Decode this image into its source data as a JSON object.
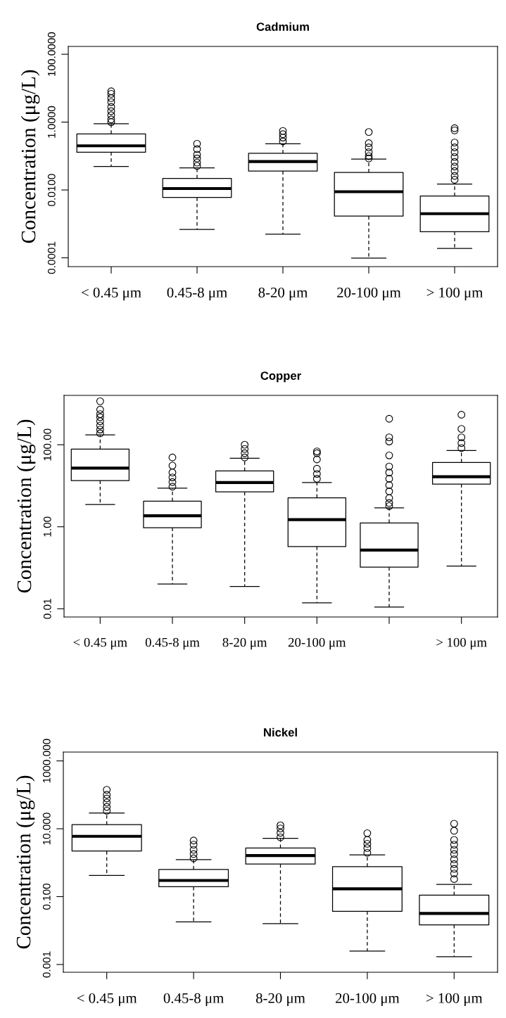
{
  "chart_data": [
    {
      "type": "box",
      "title": "Cadmium",
      "ylabel": "Concentration (μg/L)",
      "log": true,
      "ylim": [
        5.5e-05,
        170
      ],
      "yticks": [
        {
          "value": 100,
          "label": "100.0000"
        },
        {
          "value": 1,
          "label": "1.0000"
        },
        {
          "value": 0.01,
          "label": "0.0100"
        },
        {
          "value": 0.0001,
          "label": "0.0001"
        }
      ],
      "categories": [
        "< 0.45 μm",
        "0.45-8 μm",
        "8-20 μm",
        "20-100 μm",
        "> 100 μm"
      ],
      "boxes": [
        {
          "low": 0.049,
          "q1": 0.13,
          "median": 0.2,
          "q3": 0.45,
          "high": 0.9,
          "outliers": [
            8.1,
            6.8,
            5.1,
            3.9,
            2.8,
            2.1,
            1.6,
            1.2,
            1.0
          ]
        },
        {
          "low": 0.00069,
          "q1": 0.006,
          "median": 0.011,
          "q3": 0.022,
          "high": 0.045,
          "outliers": [
            0.23,
            0.16,
            0.11,
            0.085,
            0.064,
            0.051
          ]
        },
        {
          "low": 0.0005,
          "q1": 0.036,
          "median": 0.069,
          "q3": 0.12,
          "high": 0.23,
          "outliers": [
            0.55,
            0.44,
            0.35,
            0.27
          ]
        },
        {
          "low": 9.8e-05,
          "q1": 0.0017,
          "median": 0.0089,
          "q3": 0.033,
          "high": 0.081,
          "outliers": [
            0.51,
            0.24,
            0.18,
            0.13,
            0.1,
            0.085
          ]
        },
        {
          "low": 0.00019,
          "q1": 0.00059,
          "median": 0.002,
          "q3": 0.0066,
          "high": 0.015,
          "outliers": [
            0.66,
            0.57,
            0.25,
            0.18,
            0.13,
            0.094,
            0.067,
            0.049,
            0.036,
            0.026,
            0.02
          ]
        }
      ]
    },
    {
      "type": "box",
      "title": "Copper",
      "ylabel": "Concentration (μg/L)",
      "log": true,
      "ylim": [
        0.0063,
        1600
      ],
      "yticks": [
        {
          "value": 100,
          "label": "100.00"
        },
        {
          "value": 1,
          "label": "1.00"
        },
        {
          "value": 0.01,
          "label": "0.01"
        }
      ],
      "categories": [
        "< 0.45 μm",
        "0.45-8 μm",
        "8-20 μm",
        "20-100 μm",
        null,
        "> 100 μm"
      ],
      "boxes": [
        {
          "low": 3.5,
          "q1": 13.4,
          "median": 27,
          "q3": 78,
          "high": 175,
          "outliers": [
            1150,
            720,
            560,
            470,
            375,
            295,
            235,
            190
          ]
        },
        {
          "low": 0.04,
          "q1": 0.95,
          "median": 1.85,
          "q3": 4.2,
          "high": 8.7,
          "outliers": [
            49,
            31,
            21,
            16,
            12.3,
            9.5
          ]
        },
        {
          "low": 0.035,
          "q1": 7.1,
          "median": 12,
          "q3": 23,
          "high": 47,
          "outliers": [
            100,
            79,
            62,
            49
          ]
        },
        {
          "low": 0.014,
          "q1": 0.33,
          "median": 1.49,
          "q3": 5.1,
          "high": 12,
          "outliers": [
            69,
            62,
            44,
            26,
            19.5,
            14.8
          ]
        },
        {
          "low": 0.011,
          "q1": 0.104,
          "median": 0.27,
          "q3": 1.24,
          "high": 2.9,
          "outliers": [
            430,
            152,
            120,
            55,
            29.5,
            21,
            14.8,
            10.4,
            7.3,
            5.0,
            3.8,
            3.2
          ]
        },
        {
          "low": 0.11,
          "q1": 11,
          "median": 16.6,
          "q3": 37,
          "high": 72,
          "outliers": [
            540,
            244,
            152,
            110,
            83
          ]
        }
      ]
    },
    {
      "type": "box",
      "title": "Nickel",
      "ylabel": "Concentration (μg/L)",
      "log": true,
      "ylim": [
        0.00059,
        1820
      ],
      "yticks": [
        {
          "value": 1000,
          "label": "1000.000"
        },
        {
          "value": 10,
          "label": "10.000"
        },
        {
          "value": 0.1,
          "label": "0.100"
        },
        {
          "value": 0.001,
          "label": "0.001"
        }
      ],
      "categories": [
        "< 0.45 μm",
        "0.45-8 μm",
        "8-20 μm",
        "20-100 μm",
        "> 100 μm"
      ],
      "boxes": [
        {
          "low": 0.42,
          "q1": 2.2,
          "median": 6.0,
          "q3": 13.2,
          "high": 29,
          "outliers": [
            141,
            100,
            78,
            59,
            44,
            34
          ]
        },
        {
          "low": 0.018,
          "q1": 0.195,
          "median": 0.3,
          "q3": 0.63,
          "high": 1.23,
          "outliers": [
            4.5,
            3.4,
            2.4,
            1.8,
            1.35
          ]
        },
        {
          "low": 0.016,
          "q1": 0.91,
          "median": 1.62,
          "q3": 2.7,
          "high": 5.2,
          "outliers": [
            12.6,
            10.2,
            7.6,
            5.6
          ]
        },
        {
          "low": 0.0025,
          "q1": 0.037,
          "median": 0.17,
          "q3": 0.76,
          "high": 1.7,
          "outliers": [
            7.4,
            4.7,
            3.6,
            2.7,
            1.96
          ]
        },
        {
          "low": 0.0017,
          "q1": 0.0148,
          "median": 0.032,
          "q3": 0.11,
          "high": 0.23,
          "outliers": [
            14.1,
            8.7,
            4.7,
            3.4,
            2.4,
            1.8,
            1.26,
            0.91,
            0.66,
            0.48,
            0.33
          ]
        }
      ]
    }
  ]
}
